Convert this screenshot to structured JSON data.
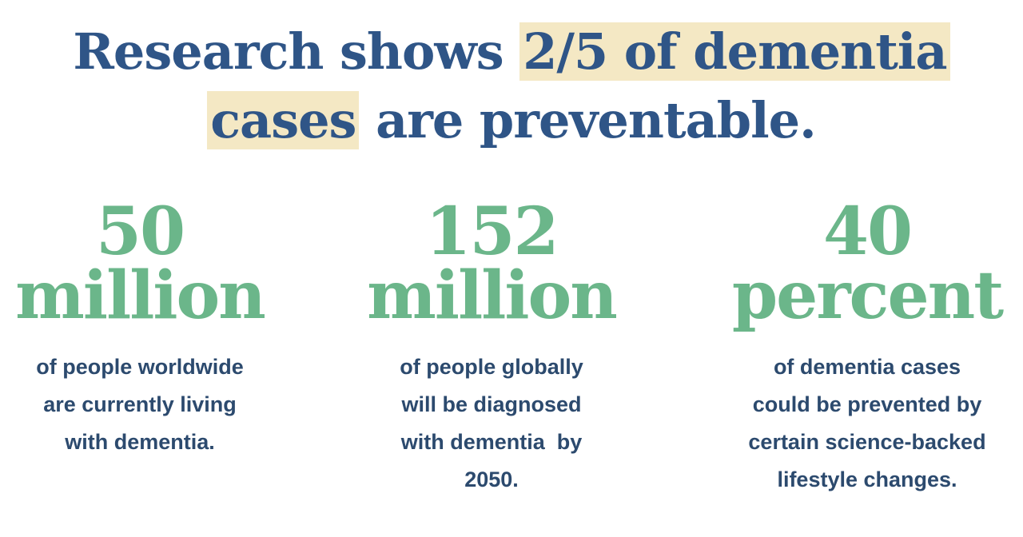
{
  "headline": {
    "lead": "Research shows",
    "highlight_line1": "2/5 of dementia",
    "highlight_line2": "cases",
    "tail": "are preventable."
  },
  "stats": [
    {
      "number": "50",
      "unit": "million",
      "description": [
        "of people worldwide",
        "are currently living",
        "with dementia."
      ]
    },
    {
      "number": "152",
      "unit": "million",
      "description": [
        "of people globally",
        "will be diagnosed",
        "with dementia  by",
        "2050."
      ]
    },
    {
      "number": "40",
      "unit": "percent",
      "description": [
        "of dementia cases",
        "could be prevented by",
        "certain science-backed",
        "lifestyle changes."
      ]
    }
  ]
}
